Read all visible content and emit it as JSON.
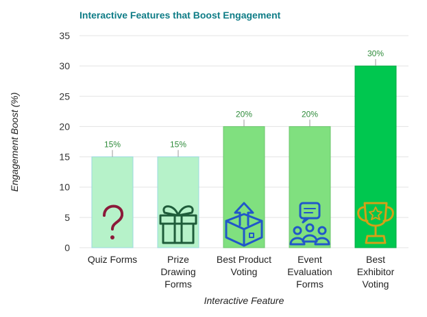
{
  "chart_data": {
    "type": "bar",
    "title": "Interactive Features that Boost Engagement",
    "xlabel": "Interactive Feature",
    "ylabel": "Engagement Boost (%)",
    "ylim": [
      0,
      35
    ],
    "yticks": [
      0,
      5,
      10,
      15,
      20,
      25,
      30,
      35
    ],
    "grid": true,
    "categories": [
      [
        "Quiz Forms"
      ],
      [
        "Prize",
        "Drawing",
        "Forms"
      ],
      [
        "Best Product",
        "Voting"
      ],
      [
        "Event",
        "Evaluation",
        "Forms"
      ],
      [
        "Best",
        "Exhibitor",
        "Voting"
      ]
    ],
    "values": [
      15,
      15,
      20,
      20,
      30
    ],
    "data_labels": [
      "15%",
      "15%",
      "20%",
      "20%",
      "30%"
    ],
    "icons": [
      "question-mark-icon",
      "gift-box-icon",
      "ballot-box-icon",
      "feedback-group-icon",
      "trophy-icon"
    ],
    "colors": {
      "title": "#0e7c86",
      "bars": [
        "#b6f2c9",
        "#b6f2c9",
        "#80e07f",
        "#80e07f",
        "#00c74f"
      ],
      "bar_borders": [
        "#9bd9e0",
        "#9bd9e0",
        "#6cc46e",
        "#6cc46e",
        "#00a844"
      ],
      "labels": "#2e8b3a",
      "icons": [
        "#8b1a3a",
        "#1f5c3a",
        "#2157c9",
        "#2157c9",
        "#d4a017"
      ],
      "grid": "#e3e3e3"
    }
  }
}
